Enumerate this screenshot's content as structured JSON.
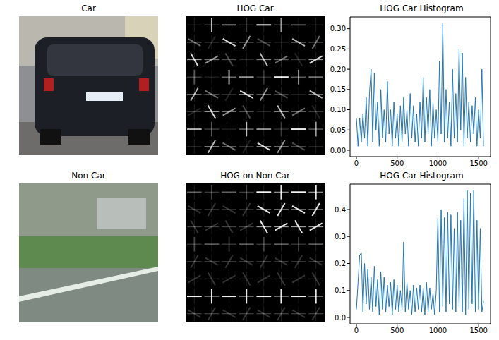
{
  "chart_data": [
    {
      "type": "image",
      "title": "Car"
    },
    {
      "type": "image",
      "title": "HOG Car"
    },
    {
      "type": "line",
      "title": "HOG Car Histogram",
      "color": "#1f77b4",
      "x": [
        0,
        20,
        40,
        60,
        80,
        100,
        120,
        140,
        160,
        180,
        200,
        220,
        240,
        260,
        280,
        300,
        320,
        340,
        360,
        380,
        400,
        420,
        440,
        460,
        480,
        500,
        520,
        540,
        560,
        580,
        600,
        620,
        640,
        660,
        680,
        700,
        720,
        740,
        760,
        780,
        800,
        820,
        840,
        860,
        880,
        900,
        920,
        940,
        960,
        980,
        1000,
        1020,
        1040,
        1060,
        1080,
        1100,
        1120,
        1140,
        1160,
        1180,
        1200,
        1220,
        1240,
        1260,
        1280,
        1300,
        1320,
        1340,
        1360,
        1380,
        1400,
        1420,
        1440,
        1460,
        1480,
        1500,
        1520,
        1540,
        1560
      ],
      "values": [
        0.08,
        0.01,
        0.08,
        0.02,
        0.09,
        0.03,
        0.13,
        0.01,
        0.14,
        0.2,
        0.02,
        0.19,
        0.05,
        0.12,
        0.01,
        0.15,
        0.03,
        0.1,
        0.02,
        0.17,
        0.04,
        0.1,
        0.01,
        0.12,
        0.03,
        0.09,
        0.01,
        0.11,
        0.02,
        0.13,
        0.04,
        0.1,
        0.01,
        0.14,
        0.03,
        0.11,
        0.02,
        0.09,
        0.01,
        0.12,
        0.03,
        0.18,
        0.02,
        0.13,
        0.04,
        0.15,
        0.01,
        0.12,
        0.03,
        0.1,
        0.02,
        0.22,
        0.04,
        0.313,
        0.02,
        0.15,
        0.03,
        0.12,
        0.01,
        0.2,
        0.03,
        0.14,
        0.02,
        0.25,
        0.05,
        0.24,
        0.01,
        0.18,
        0.03,
        0.12,
        0.02,
        0.11,
        0.04,
        0.13,
        0.01,
        0.1,
        0.03,
        0.2,
        0.01
      ],
      "xlim": [
        -78,
        1646
      ],
      "xticks": [
        0,
        500,
        1000,
        1500
      ],
      "ylim": [
        -0.0157,
        0.329
      ],
      "yticks": [
        {
          "value": 0,
          "label": "0.00"
        },
        {
          "value": 0.05,
          "label": "0.05"
        },
        {
          "value": 0.1,
          "label": "0.10"
        },
        {
          "value": 0.15,
          "label": "0.15"
        },
        {
          "value": 0.2,
          "label": "0.20"
        },
        {
          "value": 0.25,
          "label": "0.25"
        },
        {
          "value": 0.3,
          "label": "0.30"
        }
      ]
    },
    {
      "type": "image",
      "title": "Non Car"
    },
    {
      "type": "image",
      "title": "HOG on Non Car"
    },
    {
      "type": "line",
      "title": "HOG Car Histogram",
      "color": "#1f77b4",
      "x": [
        0,
        20,
        40,
        60,
        80,
        100,
        120,
        140,
        160,
        180,
        200,
        220,
        240,
        260,
        280,
        300,
        320,
        340,
        360,
        380,
        400,
        420,
        440,
        460,
        480,
        500,
        520,
        540,
        560,
        580,
        600,
        620,
        640,
        660,
        680,
        700,
        720,
        740,
        760,
        780,
        800,
        820,
        840,
        860,
        880,
        900,
        920,
        940,
        960,
        980,
        1000,
        1020,
        1040,
        1060,
        1080,
        1100,
        1120,
        1140,
        1160,
        1180,
        1200,
        1220,
        1240,
        1260,
        1280,
        1300,
        1320,
        1340,
        1360,
        1380,
        1400,
        1420,
        1440,
        1460,
        1480,
        1500,
        1520,
        1540,
        1560
      ],
      "values": [
        0.03,
        0.13,
        0.23,
        0.24,
        0.02,
        0.2,
        0.05,
        0.18,
        0.03,
        0.15,
        0.02,
        0.19,
        0.04,
        0.14,
        0.01,
        0.17,
        0.03,
        0.15,
        0.02,
        0.12,
        0.04,
        0.13,
        0.01,
        0.14,
        0.03,
        0.12,
        0.02,
        0.1,
        0.03,
        0.28,
        0.02,
        0.13,
        0.03,
        0.1,
        0.01,
        0.12,
        0.02,
        0.11,
        0.03,
        0.12,
        0.02,
        0.11,
        0.01,
        0.13,
        0.02,
        0.11,
        0.03,
        0.09,
        0.01,
        0.1,
        0.37,
        0.02,
        0.4,
        0.04,
        0.37,
        0.02,
        0.39,
        0.05,
        0.38,
        0.03,
        0.33,
        0.02,
        0.39,
        0.04,
        0.36,
        0.02,
        0.44,
        0.01,
        0.47,
        0.03,
        0.46,
        0.05,
        0.47,
        0.02,
        0.36,
        0.03,
        0.33,
        0.02,
        0.06
      ],
      "xlim": [
        -78,
        1646
      ],
      "xticks": [
        0,
        500,
        1000,
        1500
      ],
      "ylim": [
        -0.0235,
        0.494
      ],
      "yticks": [
        {
          "value": 0,
          "label": "0.0"
        },
        {
          "value": 0.1,
          "label": "0.1"
        },
        {
          "value": 0.2,
          "label": "0.2"
        },
        {
          "value": 0.3,
          "label": "0.3"
        },
        {
          "value": 0.4,
          "label": "0.4"
        }
      ]
    }
  ]
}
